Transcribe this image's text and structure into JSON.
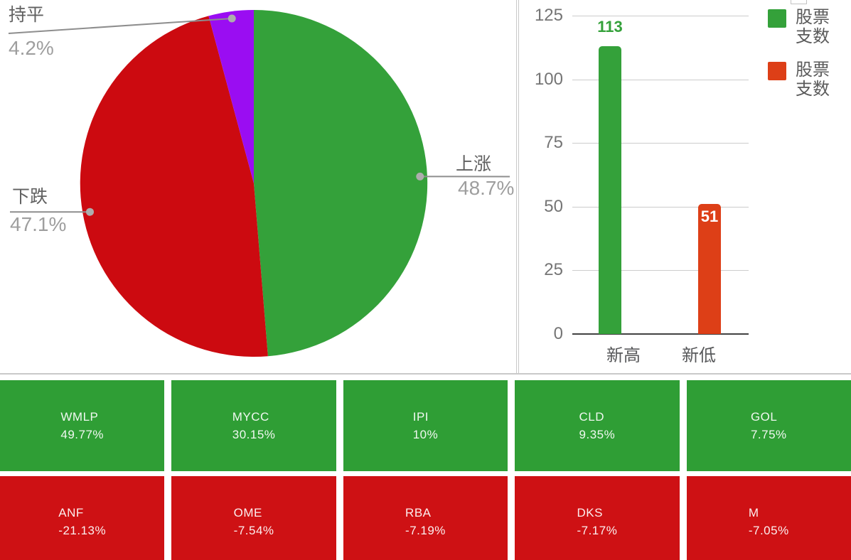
{
  "colors": {
    "pie_green": "#34a13a",
    "pie_red": "#cc0a10",
    "pie_purple": "#9a0df2",
    "bar_green": "#34a13a",
    "bar_orange_red": "#dd3f17",
    "tile_green": "#2f9e35",
    "tile_red": "#ce1114",
    "callout_name_gray": "#616161",
    "callout_pct_gray": "#9e9e9e"
  },
  "chart_data": [
    {
      "type": "pie",
      "title": "",
      "start": "12-oclock, clockwise",
      "legend_position": "outside-callouts",
      "slices": [
        {
          "id": "up",
          "label": "上涨",
          "value": 48.7,
          "pct_label": "48.7%",
          "color": "#34a13a"
        },
        {
          "id": "down",
          "label": "下跌",
          "value": 47.1,
          "pct_label": "47.1%",
          "color": "#cc0a10"
        },
        {
          "id": "flat",
          "label": "持平",
          "value": 4.2,
          "pct_label": "4.2%",
          "color": "#9a0df2"
        }
      ]
    },
    {
      "type": "bar",
      "title": "",
      "categories": [
        "新高",
        "新低"
      ],
      "bars": [
        {
          "category": "新高",
          "value": 113,
          "label": "113",
          "color": "#34a13a",
          "label_position": "above",
          "label_color": "#34a13a"
        },
        {
          "category": "新低",
          "value": 51,
          "label": "51",
          "color": "#dd3f17",
          "label_position": "inside-top",
          "label_color": "#ffffff"
        }
      ],
      "series": [
        {
          "name": "股票支数",
          "color": "#34a13a"
        },
        {
          "name": "股票支数",
          "color": "#dd3f17"
        }
      ],
      "ylim": [
        0,
        125
      ],
      "yticks": [
        0,
        25,
        50,
        75,
        100,
        125
      ],
      "grid": true,
      "legend_position": "right"
    }
  ],
  "tiles": {
    "gainers": [
      {
        "symbol": "WMLP",
        "change": "49.77%"
      },
      {
        "symbol": "MYCC",
        "change": "30.15%"
      },
      {
        "symbol": "IPI",
        "change": "10%"
      },
      {
        "symbol": "CLD",
        "change": "9.35%"
      },
      {
        "symbol": "GOL",
        "change": "7.75%"
      }
    ],
    "losers": [
      {
        "symbol": "ANF",
        "change": "-21.13%"
      },
      {
        "symbol": "OME",
        "change": "-7.54%"
      },
      {
        "symbol": "RBA",
        "change": "-7.19%"
      },
      {
        "symbol": "DKS",
        "change": "-7.17%"
      },
      {
        "symbol": "M",
        "change": "-7.05%"
      }
    ]
  }
}
